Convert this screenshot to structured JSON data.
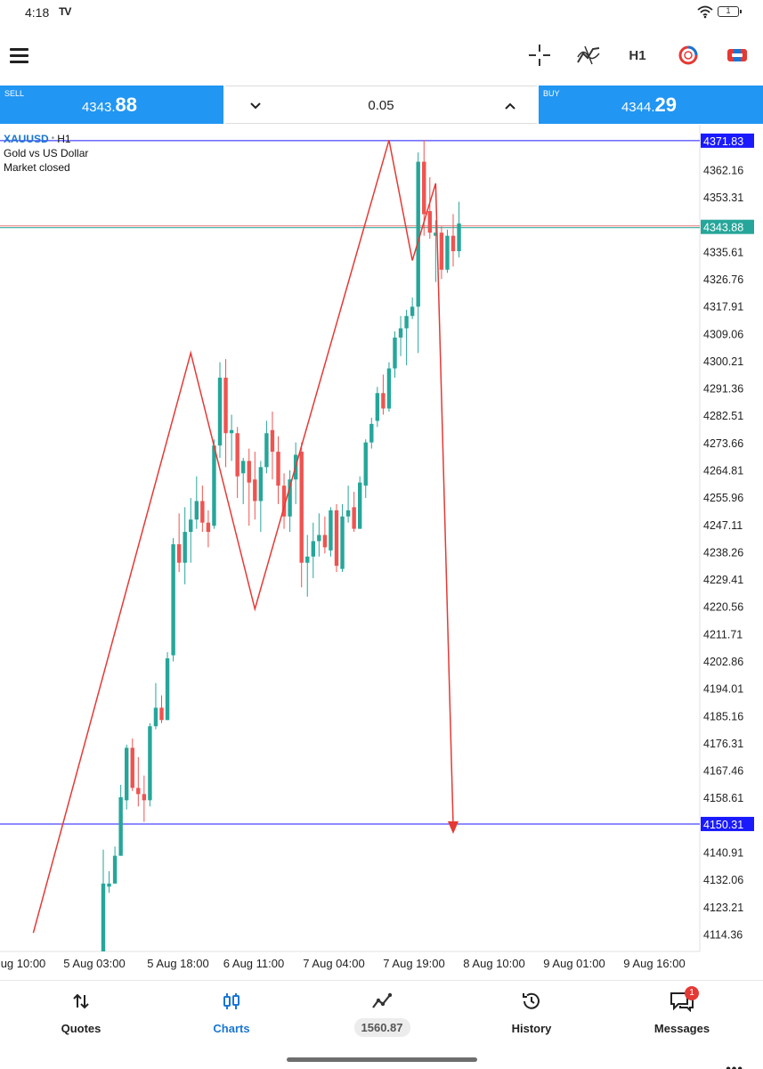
{
  "status_bar": {
    "time": "4:18",
    "app_logo": "TV",
    "battery": "1"
  },
  "toolbar": {
    "menu_icon": "hamburger-menu-icon",
    "crosshair_icon": "crosshair-icon",
    "indicator_icon": "indicator-icon",
    "timeframe": "H1",
    "objects_icon": "drawing-objects-icon",
    "trade_icon": "trade-icon"
  },
  "trade_bar": {
    "sell_label": "SELL",
    "sell_price_small": "4343.",
    "sell_price_big": "88",
    "volume": "0.05",
    "buy_label": "BUY",
    "buy_price_small": "4344.",
    "buy_price_big": "29",
    "accent_color": "#2196f3"
  },
  "chart": {
    "symbol": "XAUUSD",
    "timeframe": "H1",
    "description": "Gold vs US Dollar",
    "status": "Market closed",
    "price_labels": [
      "4362.16",
      "4353.31",
      "4335.61",
      "4326.76",
      "4317.91",
      "4309.06",
      "4300.21",
      "4291.36",
      "4282.51",
      "4273.66",
      "4264.81",
      "4255.96",
      "4247.11",
      "4238.26",
      "4229.41",
      "4220.56",
      "4211.71",
      "4202.86",
      "4194.01",
      "4185.16",
      "4176.31",
      "4167.46",
      "4158.61",
      "4140.91",
      "4132.06",
      "4123.21",
      "4114.36"
    ],
    "time_labels": [
      "ug 10:00",
      "5 Aug 03:00",
      "5 Aug 18:00",
      "6 Aug 11:00",
      "7 Aug 04:00",
      "7 Aug 19:00",
      "8 Aug 10:00",
      "9 Aug 01:00",
      "9 Aug 16:00"
    ],
    "upper_line_price": "4371.83",
    "current_price": "4343.88",
    "lower_line_price": "4150.31"
  },
  "chart_data": {
    "type": "candlestick",
    "symbol": "XAUUSD",
    "ylim": [
      4109,
      4377
    ],
    "y_ticks": [
      4362.16,
      4353.31,
      4335.61,
      4326.76,
      4317.91,
      4309.06,
      4300.21,
      4291.36,
      4282.51,
      4273.66,
      4264.81,
      4255.96,
      4247.11,
      4238.26,
      4229.41,
      4220.56,
      4211.71,
      4202.86,
      4194.01,
      4185.16,
      4176.31,
      4167.46,
      4158.61,
      4140.91,
      4132.06,
      4123.21,
      4114.36
    ],
    "x_ticks": [
      "ug 10:00",
      "5 Aug 03:00",
      "5 Aug 18:00",
      "6 Aug 11:00",
      "7 Aug 04:00",
      "7 Aug 19:00",
      "8 Aug 10:00",
      "9 Aug 01:00",
      "9 Aug 16:00"
    ],
    "horizontal_lines": [
      {
        "price": 4371.83,
        "color": "#1a1aff"
      },
      {
        "price": 4343.88,
        "color": "#26a69a"
      },
      {
        "price": 4150.31,
        "color": "#1a1aff"
      }
    ],
    "candles": [
      {
        "o": 4107,
        "h": 4142,
        "l": 4107,
        "c": 4131
      },
      {
        "o": 4130,
        "h": 4135,
        "l": 4128,
        "c": 4131
      },
      {
        "o": 4131,
        "h": 4143,
        "l": 4131,
        "c": 4140
      },
      {
        "o": 4140,
        "h": 4163,
        "l": 4140,
        "c": 4159
      },
      {
        "o": 4158,
        "h": 4176,
        "l": 4155,
        "c": 4175
      },
      {
        "o": 4175,
        "h": 4178,
        "l": 4161,
        "c": 4162
      },
      {
        "o": 4162,
        "h": 4172,
        "l": 4156,
        "c": 4160
      },
      {
        "o": 4160,
        "h": 4166,
        "l": 4151,
        "c": 4158
      },
      {
        "o": 4158,
        "h": 4183,
        "l": 4156,
        "c": 4182
      },
      {
        "o": 4182,
        "h": 4196,
        "l": 4181,
        "c": 4188
      },
      {
        "o": 4188,
        "h": 4192,
        "l": 4183,
        "c": 4184
      },
      {
        "o": 4184,
        "h": 4206,
        "l": 4184,
        "c": 4204
      },
      {
        "o": 4205,
        "h": 4243,
        "l": 4203,
        "c": 4241
      },
      {
        "o": 4241,
        "h": 4251,
        "l": 4232,
        "c": 4235
      },
      {
        "o": 4235,
        "h": 4253,
        "l": 4228,
        "c": 4245
      },
      {
        "o": 4245,
        "h": 4256,
        "l": 4235,
        "c": 4249
      },
      {
        "o": 4249,
        "h": 4263,
        "l": 4246,
        "c": 4255
      },
      {
        "o": 4255,
        "h": 4260,
        "l": 4245,
        "c": 4248
      },
      {
        "o": 4248,
        "h": 4252,
        "l": 4240,
        "c": 4245
      },
      {
        "o": 4247,
        "h": 4275,
        "l": 4246,
        "c": 4273
      },
      {
        "o": 4273,
        "h": 4300,
        "l": 4269,
        "c": 4295
      },
      {
        "o": 4295,
        "h": 4301,
        "l": 4266,
        "c": 4277
      },
      {
        "o": 4277,
        "h": 4283,
        "l": 4268,
        "c": 4278
      },
      {
        "o": 4277,
        "h": 4279,
        "l": 4256,
        "c": 4263
      },
      {
        "o": 4264,
        "h": 4269,
        "l": 4254,
        "c": 4268
      },
      {
        "o": 4268,
        "h": 4272,
        "l": 4247,
        "c": 4261
      },
      {
        "o": 4262,
        "h": 4271,
        "l": 4249,
        "c": 4255
      },
      {
        "o": 4255,
        "h": 4268,
        "l": 4245,
        "c": 4266
      },
      {
        "o": 4266,
        "h": 4281,
        "l": 4264,
        "c": 4277
      },
      {
        "o": 4278,
        "h": 4284,
        "l": 4262,
        "c": 4271
      },
      {
        "o": 4271,
        "h": 4276,
        "l": 4254,
        "c": 4260
      },
      {
        "o": 4260,
        "h": 4264,
        "l": 4246,
        "c": 4250
      },
      {
        "o": 4250,
        "h": 4265,
        "l": 4245,
        "c": 4262
      },
      {
        "o": 4262,
        "h": 4274,
        "l": 4254,
        "c": 4270
      },
      {
        "o": 4271,
        "h": 4274,
        "l": 4227,
        "c": 4235
      },
      {
        "o": 4235,
        "h": 4244,
        "l": 4224,
        "c": 4237
      },
      {
        "o": 4237,
        "h": 4248,
        "l": 4230,
        "c": 4242
      },
      {
        "o": 4242,
        "h": 4251,
        "l": 4237,
        "c": 4244
      },
      {
        "o": 4244,
        "h": 4250,
        "l": 4238,
        "c": 4240
      },
      {
        "o": 4239,
        "h": 4253,
        "l": 4237,
        "c": 4252
      },
      {
        "o": 4252,
        "h": 4254,
        "l": 4232,
        "c": 4234
      },
      {
        "o": 4233,
        "h": 4254,
        "l": 4232,
        "c": 4250
      },
      {
        "o": 4250,
        "h": 4260,
        "l": 4248,
        "c": 4252
      },
      {
        "o": 4253,
        "h": 4258,
        "l": 4245,
        "c": 4246
      },
      {
        "o": 4246,
        "h": 4263,
        "l": 4246,
        "c": 4261
      },
      {
        "o": 4260,
        "h": 4275,
        "l": 4256,
        "c": 4274
      },
      {
        "o": 4274,
        "h": 4282,
        "l": 4272,
        "c": 4280
      },
      {
        "o": 4281,
        "h": 4292,
        "l": 4279,
        "c": 4290
      },
      {
        "o": 4290,
        "h": 4296,
        "l": 4283,
        "c": 4285
      },
      {
        "o": 4285,
        "h": 4300,
        "l": 4284,
        "c": 4298
      },
      {
        "o": 4298,
        "h": 4310,
        "l": 4295,
        "c": 4308
      },
      {
        "o": 4308,
        "h": 4315,
        "l": 4302,
        "c": 4311
      },
      {
        "o": 4311,
        "h": 4317,
        "l": 4299,
        "c": 4315
      },
      {
        "o": 4315,
        "h": 4321,
        "l": 4314,
        "c": 4318
      },
      {
        "o": 4318,
        "h": 4368,
        "l": 4303,
        "c": 4365
      },
      {
        "o": 4365,
        "h": 4372,
        "l": 4341,
        "c": 4348
      },
      {
        "o": 4349,
        "h": 4360,
        "l": 4340,
        "c": 4342
      },
      {
        "o": 4341,
        "h": 4346,
        "l": 4326,
        "c": 4342
      },
      {
        "o": 4342,
        "h": 4344,
        "l": 4327,
        "c": 4330
      },
      {
        "o": 4330,
        "h": 4343,
        "l": 4329,
        "c": 4341
      },
      {
        "o": 4341,
        "h": 4348,
        "l": 4331,
        "c": 4336
      },
      {
        "o": 4336,
        "h": 4352,
        "l": 4334,
        "c": 4345
      }
    ],
    "wave_drawing": {
      "color": "#e53935",
      "points": [
        [
          -12,
          4115
        ],
        [
          15,
          4303
        ],
        [
          26,
          4220
        ],
        [
          49,
          4372
        ],
        [
          53,
          4333
        ],
        [
          57,
          4358
        ],
        [
          60,
          4150
        ]
      ]
    },
    "timeframe": "H1"
  },
  "nav": {
    "quotes_label": "Quotes",
    "quotes_icon": "arrows-up-down-icon",
    "charts_label": "Charts",
    "charts_icon": "candles-icon",
    "balance_value": "1560.87",
    "trade_icon": "trade-line-icon",
    "history_label": "History",
    "history_icon": "history-clock-icon",
    "messages_label": "Messages",
    "messages_icon": "messages-icon",
    "messages_badge": "1",
    "active_color": "#1976d2"
  }
}
